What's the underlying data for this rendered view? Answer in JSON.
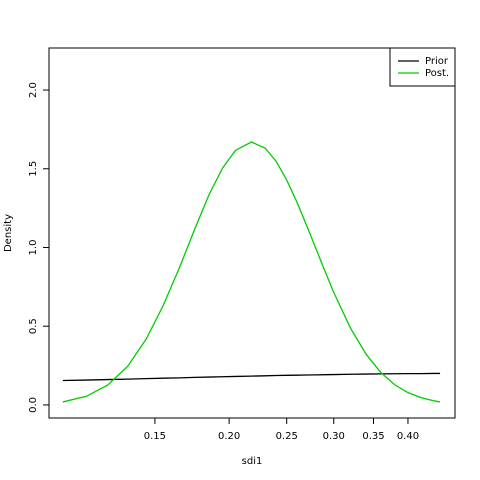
{
  "chart_data": {
    "type": "line",
    "xlabel": "sdi1",
    "ylabel": "Density",
    "x": [
      0.105,
      0.115,
      0.125,
      0.135,
      0.145,
      0.155,
      0.165,
      0.175,
      0.185,
      0.195,
      0.205,
      0.218,
      0.23,
      0.24,
      0.25,
      0.26,
      0.27,
      0.28,
      0.29,
      0.3,
      0.32,
      0.34,
      0.36,
      0.38,
      0.4,
      0.42,
      0.44,
      0.453
    ],
    "series": [
      {
        "name": "Prior",
        "color": "#000000",
        "values": [
          0.155,
          0.158,
          0.161,
          0.164,
          0.167,
          0.17,
          0.172,
          0.175,
          0.177,
          0.179,
          0.181,
          0.183,
          0.185,
          0.187,
          0.188,
          0.189,
          0.19,
          0.191,
          0.192,
          0.193,
          0.195,
          0.196,
          0.197,
          0.198,
          0.199,
          0.199,
          0.2,
          0.2
        ]
      },
      {
        "name": "Post.",
        "color": "#00cd00",
        "values": [
          0.019,
          0.055,
          0.127,
          0.246,
          0.418,
          0.634,
          0.873,
          1.116,
          1.335,
          1.505,
          1.617,
          1.67,
          1.631,
          1.547,
          1.428,
          1.29,
          1.141,
          0.993,
          0.849,
          0.715,
          0.489,
          0.323,
          0.206,
          0.128,
          0.078,
          0.047,
          0.028,
          0.019
        ]
      }
    ],
    "xscale": "log",
    "xlim": [
      0.0995,
      0.48
    ],
    "ylim": [
      -0.083,
      2.267
    ],
    "xticks": [
      0.15,
      {
        "value": 0.2,
        "label": "0.20"
      },
      0.25,
      {
        "value": 0.3,
        "label": "0.30"
      },
      0.35,
      {
        "value": 0.4,
        "label": "0.40"
      }
    ],
    "yticks": [
      {
        "value": 0,
        "label": "0.0"
      },
      0.5,
      {
        "value": 1,
        "label": "1.0"
      },
      1.5,
      {
        "value": 2,
        "label": "2.0"
      }
    ],
    "legend": "topright"
  }
}
